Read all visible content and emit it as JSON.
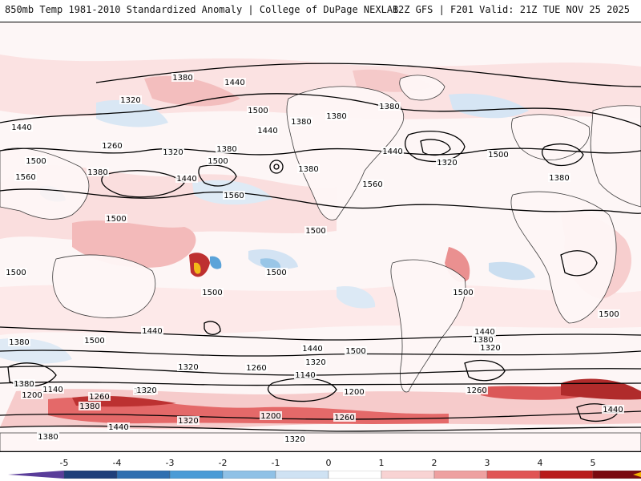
{
  "header": {
    "left_title": "850mb Temp 1981-2010 Standardized Anomaly | College of DuPage NEXLAB",
    "right_title": "12Z GFS | F201 Valid: 21Z TUE NOV 25 2025"
  },
  "map": {
    "contour_labels": [
      "1380",
      "1440",
      "1320",
      "1500",
      "1380",
      "1440",
      "1260",
      "1380",
      "1320",
      "1380",
      "1560",
      "1500",
      "1440",
      "1500",
      "1560",
      "1440",
      "1380",
      "1380",
      "1320",
      "1380",
      "1380",
      "1440",
      "1500",
      "1560",
      "1500",
      "1500",
      "1500",
      "1500",
      "1500",
      "1440",
      "1380",
      "1500",
      "1440",
      "1380",
      "1320",
      "1260",
      "1320",
      "1320",
      "1140",
      "1200",
      "1140",
      "1200",
      "1260",
      "1380",
      "1320",
      "1200",
      "1260",
      "1320",
      "1440",
      "1500",
      "1500",
      "1380",
      "1320",
      "1440",
      "1500",
      "1380",
      "1320",
      "1260",
      "1440"
    ]
  },
  "colorbar": {
    "ticks": [
      "-5",
      "-4",
      "-3",
      "-2",
      "-1",
      "0",
      "1",
      "2",
      "3",
      "4",
      "5"
    ],
    "colors": [
      "#5a3d9a",
      "#1f3f7a",
      "#2f6fb0",
      "#4a9bd6",
      "#8fc1e6",
      "#cfe2f3",
      "#ffffff",
      "#f8d3d3",
      "#eea0a0",
      "#e05555",
      "#b81b1b",
      "#7a0a10",
      "#f2b300"
    ]
  }
}
